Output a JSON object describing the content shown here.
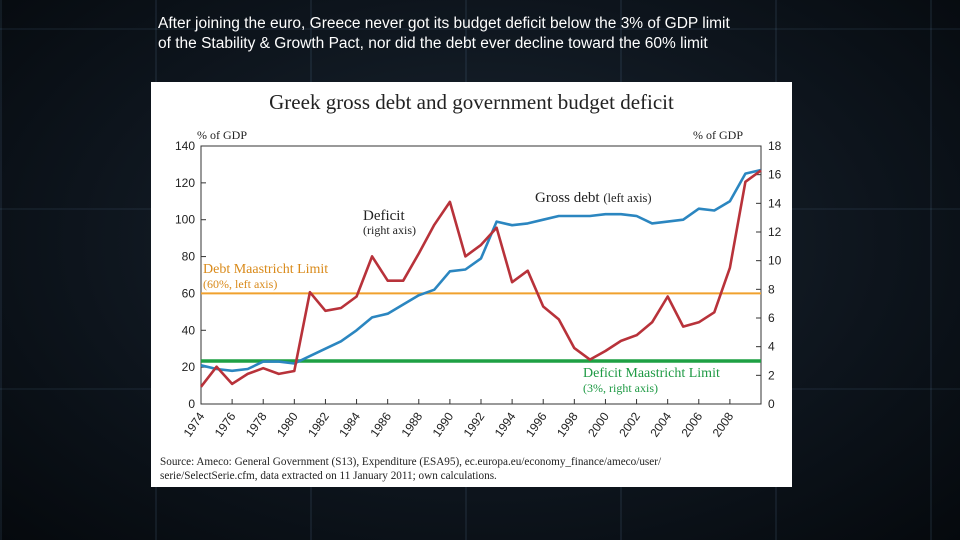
{
  "caption": {
    "line1": "After joining the euro, Greece never got its budget deficit below the 3% of GDP limit",
    "line2": "of the Stability & Growth Pact, nor did the debt ever decline toward the 60% limit"
  },
  "colors": {
    "debt": "#2b86c0",
    "deficit": "#b8323a",
    "debt_limit": "#f0a12e",
    "deficit_limit": "#1ea044"
  },
  "chart_data": {
    "type": "line",
    "title": "Greek gross debt and government budget deficit",
    "left_axis": {
      "label": "% of GDP",
      "range": [
        0,
        140
      ],
      "ticks": [
        "0",
        "20",
        "40",
        "60",
        "80",
        "100",
        "120",
        "140"
      ]
    },
    "right_axis": {
      "label": "% of GDP",
      "range": [
        0,
        18
      ],
      "ticks": [
        "0",
        "2",
        "4",
        "6",
        "8",
        "10",
        "12",
        "14",
        "16",
        "18"
      ]
    },
    "x_range": [
      1974,
      2010
    ],
    "x_ticks": [
      "1974",
      "1976",
      "1978",
      "1980",
      "1982",
      "1984",
      "1986",
      "1988",
      "1990",
      "1992",
      "1994",
      "1996",
      "1998",
      "2000",
      "2002",
      "2004",
      "2006",
      "2008"
    ],
    "series": [
      {
        "name": "Gross debt (left axis)",
        "axis": "left",
        "x": [
          1974,
          1975,
          1976,
          1977,
          1978,
          1979,
          1980,
          1981,
          1982,
          1983,
          1984,
          1985,
          1986,
          1987,
          1988,
          1989,
          1990,
          1991,
          1992,
          1993,
          1994,
          1995,
          1996,
          1997,
          1998,
          1999,
          2000,
          2001,
          2002,
          2003,
          2004,
          2005,
          2006,
          2007,
          2008,
          2009,
          2010
        ],
        "y": [
          21,
          19,
          18,
          19,
          23,
          23,
          22,
          26,
          30,
          34,
          40,
          47,
          49,
          54,
          59,
          62,
          72,
          73,
          79,
          99,
          97,
          98,
          100,
          102,
          102,
          102,
          103,
          103,
          102,
          98,
          99,
          100,
          106,
          105,
          110,
          125,
          127
        ]
      },
      {
        "name": "Deficit (right axis)",
        "axis": "right",
        "x": [
          1974,
          1975,
          1976,
          1977,
          1978,
          1979,
          1980,
          1981,
          1982,
          1983,
          1984,
          1985,
          1986,
          1987,
          1988,
          1989,
          1990,
          1991,
          1992,
          1993,
          1994,
          1995,
          1996,
          1997,
          1998,
          1999,
          2000,
          2001,
          2002,
          2003,
          2004,
          2005,
          2006,
          2007,
          2008,
          2009,
          2010
        ],
        "y": [
          1.2,
          2.6,
          1.4,
          2.1,
          2.5,
          2.1,
          2.3,
          7.8,
          6.5,
          6.7,
          7.5,
          10.3,
          8.6,
          8.6,
          10.5,
          12.5,
          14.1,
          10.3,
          11.1,
          12.3,
          8.5,
          9.3,
          6.8,
          5.9,
          3.9,
          3.1,
          3.7,
          4.4,
          4.8,
          5.7,
          7.5,
          5.4,
          5.7,
          6.4,
          9.5,
          15.5,
          16.3
        ]
      }
    ],
    "reference_lines": [
      {
        "label": "Debt Maastricht Limit",
        "sublabel": "(60%, left axis)",
        "axis": "left",
        "value": 60
      },
      {
        "label": "Deficit Maastricht Limit",
        "sublabel": "(3%, right axis)",
        "axis": "right",
        "value": 3
      }
    ],
    "annotations": {
      "debt_label": "Gross debt",
      "debt_sub": "(left axis)",
      "deficit_label": "Deficit",
      "deficit_sub": "(right axis)"
    },
    "source": {
      "line1": "Source: Ameco: General Government (S13), Expenditure (ESA95), ec.europa.eu/economy_finance/ameco/user/",
      "line2": "serie/SelectSerie.cfm, data extracted on 11 January 2011; own calculations."
    },
    "grid": false
  }
}
